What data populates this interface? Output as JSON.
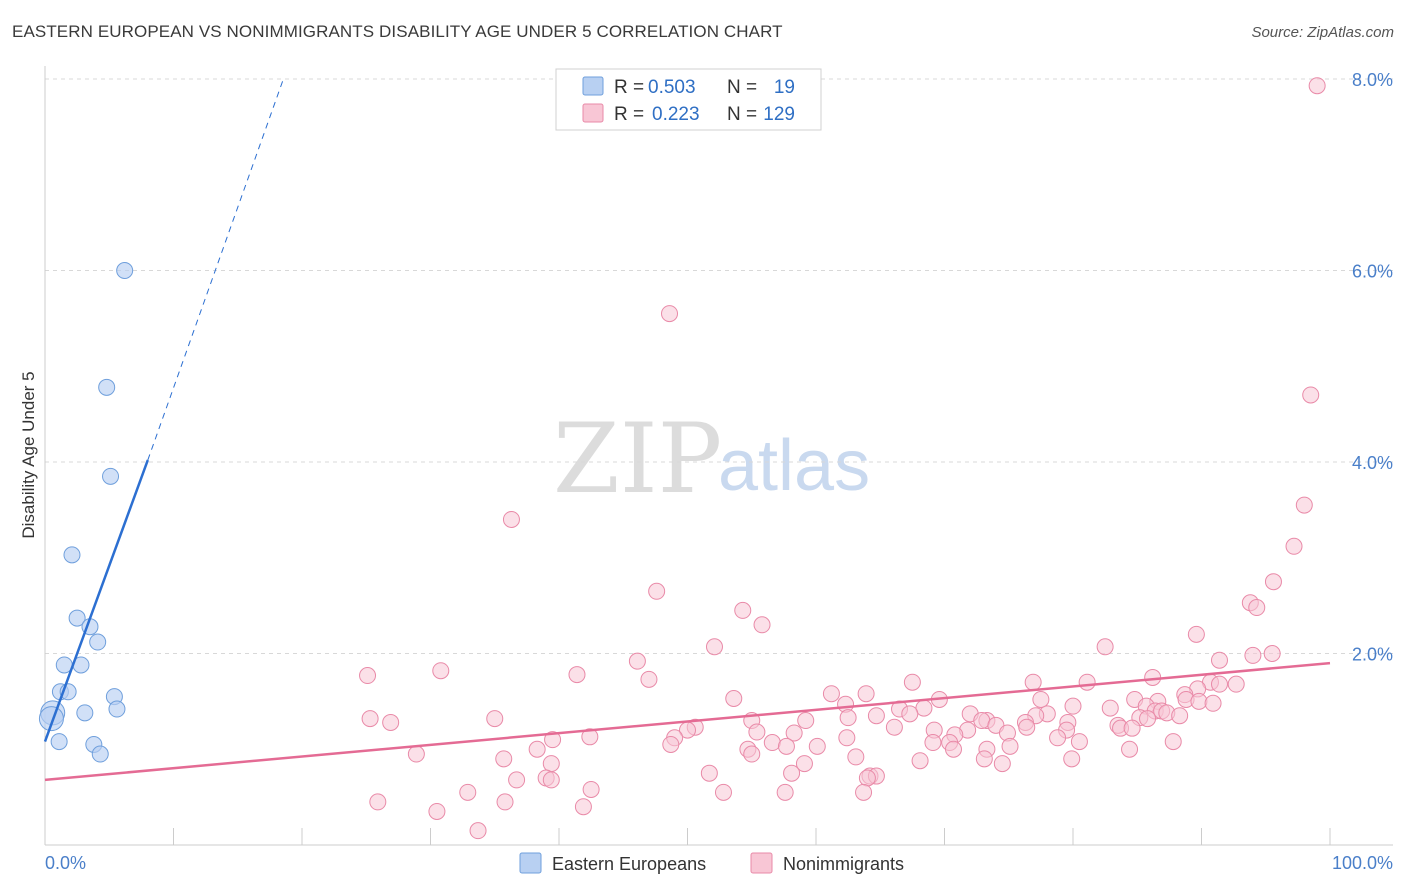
{
  "header": {
    "title": "EASTERN EUROPEAN VS NONIMMIGRANTS DISABILITY AGE UNDER 5 CORRELATION CHART",
    "source": "Source: ZipAtlas.com"
  },
  "watermark": {
    "zip": "ZIP",
    "atlas": "atlas"
  },
  "colors": {
    "blue_fill": "#b8d0f2",
    "blue_stroke": "#6f9fdc",
    "blue_line": "#2c6fd1",
    "pink_fill": "#f8c6d5",
    "pink_stroke": "#e98aa8",
    "pink_line": "#e46b94",
    "grid": "#d8d8d8",
    "axis_label": "#4a7fc9"
  },
  "legend": {
    "rows": [
      {
        "r_label": "R =",
        "r_value": "0.503",
        "n_label": "N =",
        "n_value": "19"
      },
      {
        "r_label": "R =",
        "r_value": "0.223",
        "n_label": "N =",
        "n_value": "129"
      }
    ]
  },
  "chart_data": {
    "type": "scatter",
    "title": "EASTERN EUROPEAN VS NONIMMIGRANTS DISABILITY AGE UNDER 5 CORRELATION CHART",
    "xlabel": "",
    "ylabel": "Disability Age Under 5",
    "xlim": [
      0,
      100
    ],
    "ylim": [
      0,
      8.0
    ],
    "x_tick_labels": [
      "0.0%",
      "100.0%"
    ],
    "y_ticks": [
      2.0,
      4.0,
      6.0,
      8.0
    ],
    "y_tick_labels": [
      "2.0%",
      "4.0%",
      "6.0%",
      "8.0%"
    ],
    "legend_position": "top-center",
    "series": [
      {
        "name": "Eastern Europeans",
        "color": "blue",
        "r": 0.503,
        "n": 19,
        "trend": {
          "x0": 0.0,
          "y0": 1.08,
          "x1": 8.0,
          "y1": 4.02,
          "dash_to_x": 18.5,
          "dash_to_y": 7.98
        },
        "points": [
          [
            6.2,
            6.0
          ],
          [
            4.8,
            4.78
          ],
          [
            5.1,
            3.85
          ],
          [
            2.1,
            3.03
          ],
          [
            2.5,
            2.37
          ],
          [
            3.5,
            2.28
          ],
          [
            4.1,
            2.12
          ],
          [
            1.5,
            1.88
          ],
          [
            2.8,
            1.88
          ],
          [
            1.2,
            1.6
          ],
          [
            1.8,
            1.6
          ],
          [
            5.4,
            1.55
          ],
          [
            5.6,
            1.42
          ],
          [
            3.1,
            1.38
          ],
          [
            0.6,
            1.38
          ],
          [
            0.5,
            1.32
          ],
          [
            1.1,
            1.08
          ],
          [
            3.8,
            1.05
          ],
          [
            4.3,
            0.95
          ]
        ]
      },
      {
        "name": "Nonimmigrants",
        "color": "pink",
        "r": 0.223,
        "n": 129,
        "trend": {
          "x0": 0.0,
          "y0": 0.68,
          "x1": 100.0,
          "y1": 1.9
        },
        "points": [
          [
            99.0,
            7.93
          ],
          [
            48.6,
            5.55
          ],
          [
            98.5,
            4.7
          ],
          [
            98.0,
            3.55
          ],
          [
            36.3,
            3.4
          ],
          [
            97.2,
            3.12
          ],
          [
            95.6,
            2.75
          ],
          [
            47.6,
            2.65
          ],
          [
            93.8,
            2.53
          ],
          [
            94.3,
            2.48
          ],
          [
            54.3,
            2.45
          ],
          [
            55.8,
            2.3
          ],
          [
            89.6,
            2.2
          ],
          [
            52.1,
            2.07
          ],
          [
            82.5,
            2.07
          ],
          [
            95.5,
            2.0
          ],
          [
            94.0,
            1.98
          ],
          [
            91.4,
            1.93
          ],
          [
            46.1,
            1.92
          ],
          [
            30.8,
            1.82
          ],
          [
            25.1,
            1.77
          ],
          [
            41.4,
            1.78
          ],
          [
            86.2,
            1.75
          ],
          [
            47.0,
            1.73
          ],
          [
            76.9,
            1.7
          ],
          [
            67.5,
            1.7
          ],
          [
            81.1,
            1.7
          ],
          [
            90.7,
            1.7
          ],
          [
            91.4,
            1.68
          ],
          [
            92.7,
            1.68
          ],
          [
            89.7,
            1.63
          ],
          [
            61.2,
            1.58
          ],
          [
            63.9,
            1.58
          ],
          [
            88.7,
            1.57
          ],
          [
            53.6,
            1.53
          ],
          [
            88.8,
            1.52
          ],
          [
            69.6,
            1.52
          ],
          [
            77.5,
            1.52
          ],
          [
            84.8,
            1.52
          ],
          [
            89.8,
            1.5
          ],
          [
            86.6,
            1.5
          ],
          [
            90.9,
            1.48
          ],
          [
            62.3,
            1.47
          ],
          [
            80.0,
            1.45
          ],
          [
            85.7,
            1.45
          ],
          [
            68.4,
            1.43
          ],
          [
            82.9,
            1.43
          ],
          [
            66.5,
            1.42
          ],
          [
            86.4,
            1.4
          ],
          [
            86.9,
            1.4
          ],
          [
            87.3,
            1.38
          ],
          [
            67.3,
            1.37
          ],
          [
            72.0,
            1.37
          ],
          [
            78.0,
            1.37
          ],
          [
            64.7,
            1.35
          ],
          [
            77.1,
            1.35
          ],
          [
            88.3,
            1.35
          ],
          [
            85.2,
            1.33
          ],
          [
            62.5,
            1.33
          ],
          [
            85.8,
            1.32
          ],
          [
            35.0,
            1.32
          ],
          [
            25.3,
            1.32
          ],
          [
            73.3,
            1.3
          ],
          [
            55.0,
            1.3
          ],
          [
            59.2,
            1.3
          ],
          [
            72.9,
            1.3
          ],
          [
            79.6,
            1.28
          ],
          [
            26.9,
            1.28
          ],
          [
            76.3,
            1.28
          ],
          [
            83.5,
            1.25
          ],
          [
            74.0,
            1.25
          ],
          [
            66.1,
            1.23
          ],
          [
            50.6,
            1.23
          ],
          [
            76.4,
            1.23
          ],
          [
            83.7,
            1.22
          ],
          [
            84.6,
            1.22
          ],
          [
            50.0,
            1.2
          ],
          [
            71.8,
            1.2
          ],
          [
            69.2,
            1.2
          ],
          [
            79.5,
            1.2
          ],
          [
            55.4,
            1.18
          ],
          [
            74.9,
            1.17
          ],
          [
            58.3,
            1.17
          ],
          [
            70.8,
            1.15
          ],
          [
            42.4,
            1.13
          ],
          [
            78.8,
            1.12
          ],
          [
            49.0,
            1.12
          ],
          [
            62.4,
            1.12
          ],
          [
            39.5,
            1.1
          ],
          [
            87.8,
            1.08
          ],
          [
            80.5,
            1.08
          ],
          [
            70.4,
            1.07
          ],
          [
            69.1,
            1.07
          ],
          [
            56.6,
            1.07
          ],
          [
            48.7,
            1.05
          ],
          [
            57.7,
            1.03
          ],
          [
            75.1,
            1.03
          ],
          [
            60.1,
            1.03
          ],
          [
            54.7,
            1.0
          ],
          [
            38.3,
            1.0
          ],
          [
            70.7,
            1.0
          ],
          [
            73.3,
            1.0
          ],
          [
            84.4,
            1.0
          ],
          [
            55.0,
            0.95
          ],
          [
            63.1,
            0.92
          ],
          [
            73.1,
            0.9
          ],
          [
            79.9,
            0.9
          ],
          [
            28.9,
            0.95
          ],
          [
            35.7,
            0.9
          ],
          [
            39.4,
            0.85
          ],
          [
            59.1,
            0.85
          ],
          [
            68.1,
            0.88
          ],
          [
            74.5,
            0.85
          ],
          [
            51.7,
            0.75
          ],
          [
            58.1,
            0.75
          ],
          [
            39.0,
            0.7
          ],
          [
            64.2,
            0.72
          ],
          [
            64.7,
            0.72
          ],
          [
            64.0,
            0.7
          ],
          [
            36.7,
            0.68
          ],
          [
            39.4,
            0.68
          ],
          [
            42.5,
            0.58
          ],
          [
            52.8,
            0.55
          ],
          [
            32.9,
            0.55
          ],
          [
            57.6,
            0.55
          ],
          [
            63.7,
            0.55
          ],
          [
            41.9,
            0.4
          ],
          [
            25.9,
            0.45
          ],
          [
            35.8,
            0.45
          ],
          [
            30.5,
            0.35
          ],
          [
            33.7,
            0.15
          ]
        ]
      }
    ]
  },
  "bottom_legend": [
    {
      "label": "Eastern Europeans",
      "color": "blue"
    },
    {
      "label": "Nonimmigrants",
      "color": "pink"
    }
  ]
}
